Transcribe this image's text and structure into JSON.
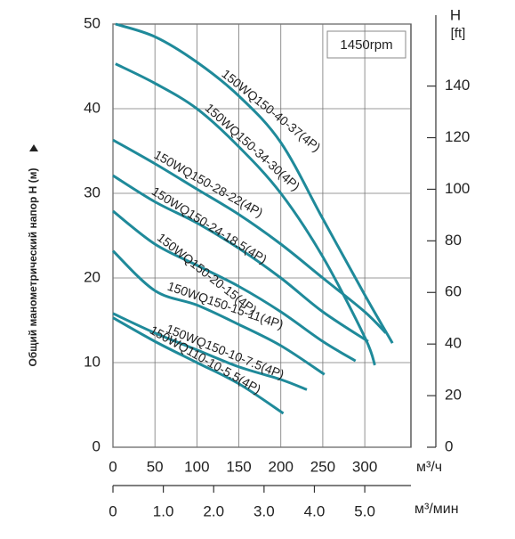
{
  "chart_data": {
    "type": "line",
    "annotation": "1450rpm",
    "xlabel": "м³/ч",
    "x2label": "м³/мин",
    "ylabel": "Общий манометрический напор H (м)",
    "y2label": "H",
    "y2unit": "[ft]",
    "xlim": [
      0,
      355
    ],
    "xticks": [
      0,
      50,
      100,
      150,
      200,
      250,
      300
    ],
    "x2lim": [
      0,
      5.9167
    ],
    "x2ticks": [
      0,
      {
        "value": 1,
        "label": "1.0"
      },
      {
        "value": 2,
        "label": "2.0"
      },
      {
        "value": 3,
        "label": "3.0"
      },
      {
        "value": 4,
        "label": "4.0"
      },
      {
        "value": 5,
        "label": "5.0"
      }
    ],
    "ylim": [
      0,
      50
    ],
    "yticks": [
      0,
      10,
      20,
      30,
      40,
      50
    ],
    "y2lim": [
      0,
      164.04
    ],
    "y2ticks": [
      0,
      20,
      40,
      60,
      80,
      100,
      120,
      140
    ],
    "grid": true,
    "series": [
      {
        "name": "150WQ150-40-37(4P)",
        "color": "#1f8a9a",
        "x": [
          3,
          50,
          100,
          150,
          200,
          250,
          300,
          333
        ],
        "values": [
          50,
          48.5,
          45.5,
          41.5,
          36,
          27,
          18,
          12.3
        ]
      },
      {
        "name": "150WQ150-34-30(4P)",
        "color": "#1f8a9a",
        "x": [
          3,
          50,
          100,
          150,
          200,
          250,
          300,
          312
        ],
        "values": [
          45.3,
          43,
          40,
          35.5,
          30,
          22.5,
          13,
          9.7
        ]
      },
      {
        "name": "150WQ150-28-22(4P)",
        "color": "#1f8a9a",
        "x": [
          0,
          50,
          100,
          150,
          200,
          250,
          300,
          325
        ],
        "values": [
          36.3,
          33.5,
          30.5,
          27.5,
          24,
          20,
          16,
          13.5
        ]
      },
      {
        "name": "150WQ150-24-18.5(4P)",
        "color": "#1f8a9a",
        "x": [
          0,
          50,
          100,
          150,
          200,
          250,
          304
        ],
        "values": [
          32.1,
          29,
          26.5,
          23.5,
          20,
          16,
          12.5
        ]
      },
      {
        "name": "150WQ150-20-15(4P)",
        "color": "#1f8a9a",
        "x": [
          0,
          50,
          100,
          150,
          200,
          250,
          289
        ],
        "values": [
          27.9,
          24,
          21.5,
          19,
          16,
          12.5,
          10.2
        ]
      },
      {
        "name": "150WQ150-15-11(4P)",
        "color": "#1f8a9a",
        "x": [
          0,
          50,
          100,
          150,
          200,
          252
        ],
        "values": [
          23.2,
          18.5,
          16.8,
          14.5,
          12,
          8.6
        ]
      },
      {
        "name": "150WQ150-10-7.5(4P)",
        "color": "#1f8a9a",
        "x": [
          0,
          50,
          100,
          150,
          200,
          231
        ],
        "values": [
          15.8,
          13.5,
          11.5,
          9.5,
          8,
          6.8
        ]
      },
      {
        "name": "150WQ110-10-5.5(4P)",
        "color": "#1f8a9a",
        "x": [
          0,
          50,
          100,
          150,
          203
        ],
        "values": [
          15.3,
          12.5,
          10,
          7.5,
          4
        ]
      }
    ]
  }
}
